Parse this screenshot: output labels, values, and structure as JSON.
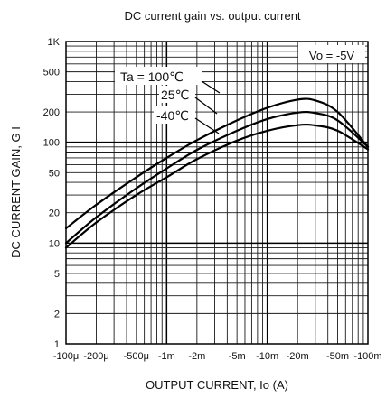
{
  "chart_data": {
    "type": "line",
    "title": "DC current gain vs. output current",
    "xlabel": "OUTPUT CURRENT, Io (A)",
    "ylabel": "DC CURRENT GAIN, G I",
    "x_scale": "log",
    "y_scale": "log",
    "xlim": [
      0.0001,
      0.1
    ],
    "ylim": [
      1,
      1000
    ],
    "grid": true,
    "x_ticks": [
      {
        "value": 0.0001,
        "label": "-100μ"
      },
      {
        "value": 0.0002,
        "label": "-200μ"
      },
      {
        "value": 0.0005,
        "label": "-500μ"
      },
      {
        "value": 0.001,
        "label": "-1m"
      },
      {
        "value": 0.002,
        "label": "-2m"
      },
      {
        "value": 0.005,
        "label": "-5m"
      },
      {
        "value": 0.01,
        "label": "-10m"
      },
      {
        "value": 0.02,
        "label": "-20m"
      },
      {
        "value": 0.05,
        "label": "-50m"
      },
      {
        "value": 0.1,
        "label": "-100m"
      }
    ],
    "y_ticks": [
      {
        "value": 1,
        "label": "1"
      },
      {
        "value": 2,
        "label": "2"
      },
      {
        "value": 5,
        "label": "5"
      },
      {
        "value": 10,
        "label": "10"
      },
      {
        "value": 20,
        "label": "20"
      },
      {
        "value": 50,
        "label": "50"
      },
      {
        "value": 100,
        "label": "100"
      },
      {
        "value": 200,
        "label": "200"
      },
      {
        "value": 500,
        "label": "500"
      },
      {
        "value": 1000,
        "label": "1K"
      }
    ],
    "annotation": "Vo = -5V",
    "series": [
      {
        "name": "Ta = 100℃",
        "x": [
          0.0001,
          0.0002,
          0.0005,
          0.001,
          0.002,
          0.005,
          0.01,
          0.02,
          0.03,
          0.05,
          0.1
        ],
        "y": [
          14,
          24,
          45,
          70,
          105,
          165,
          220,
          265,
          260,
          200,
          90
        ]
      },
      {
        "name": "25℃",
        "x": [
          0.0001,
          0.0002,
          0.0005,
          0.001,
          0.002,
          0.005,
          0.01,
          0.02,
          0.03,
          0.05,
          0.1
        ],
        "y": [
          10,
          18,
          35,
          55,
          84,
          130,
          170,
          197,
          195,
          165,
          90
        ]
      },
      {
        "name": "-40℃",
        "x": [
          0.0001,
          0.0002,
          0.0005,
          0.001,
          0.002,
          0.005,
          0.01,
          0.02,
          0.03,
          0.05,
          0.1
        ],
        "y": [
          9,
          16,
          30,
          45,
          68,
          104,
          130,
          148,
          147,
          130,
          85
        ]
      }
    ]
  }
}
